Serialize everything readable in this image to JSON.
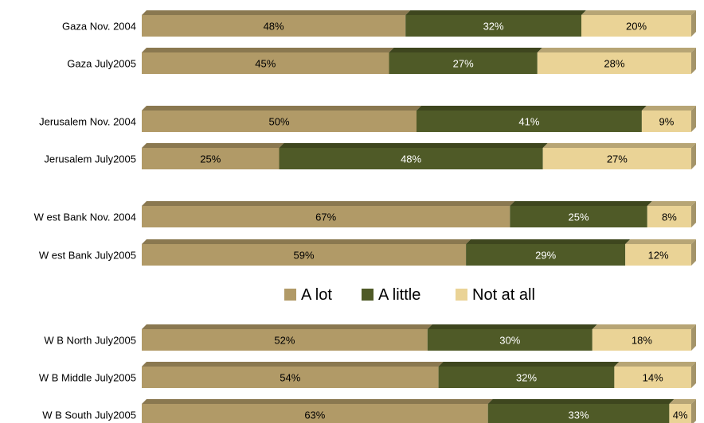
{
  "chart_data": {
    "type": "bar",
    "orientation": "horizontal",
    "stacked": true,
    "percent_scale": [
      0,
      100
    ],
    "grid": false,
    "legend_position": "middle",
    "colors": {
      "A lot": "#b19a67",
      "A little": "#4f5a27",
      "Not at all": "#ead396"
    },
    "series": [
      {
        "name": "A lot",
        "values": [
          48,
          45,
          50,
          25,
          67,
          59,
          52,
          54,
          63
        ]
      },
      {
        "name": "A little",
        "values": [
          32,
          27,
          41,
          48,
          25,
          29,
          30,
          32,
          33
        ]
      },
      {
        "name": "Not at all",
        "values": [
          20,
          28,
          9,
          27,
          8,
          12,
          18,
          14,
          4
        ]
      }
    ],
    "categories": [
      "Gaza Nov. 2004",
      "Gaza July2005",
      "Jerusalem Nov. 2004",
      "Jerusalem July2005",
      "W est Bank Nov. 2004",
      "W est Bank July2005",
      "W B North July2005",
      "W B Middle July2005",
      "W B South July2005"
    ],
    "data_labels": [
      [
        "48%",
        "32%",
        "20%"
      ],
      [
        "45%",
        "27%",
        "28%"
      ],
      [
        "50%",
        "41%",
        "9%"
      ],
      [
        "25%",
        "48%",
        "27%"
      ],
      [
        "67%",
        "25%",
        "8%"
      ],
      [
        "59%",
        "29%",
        "12%"
      ],
      [
        "52%",
        "30%",
        "18%"
      ],
      [
        "54%",
        "32%",
        "14%"
      ],
      [
        "63%",
        "33%",
        "4%"
      ]
    ],
    "legend": [
      "A lot",
      "A little",
      "Not at all"
    ]
  }
}
